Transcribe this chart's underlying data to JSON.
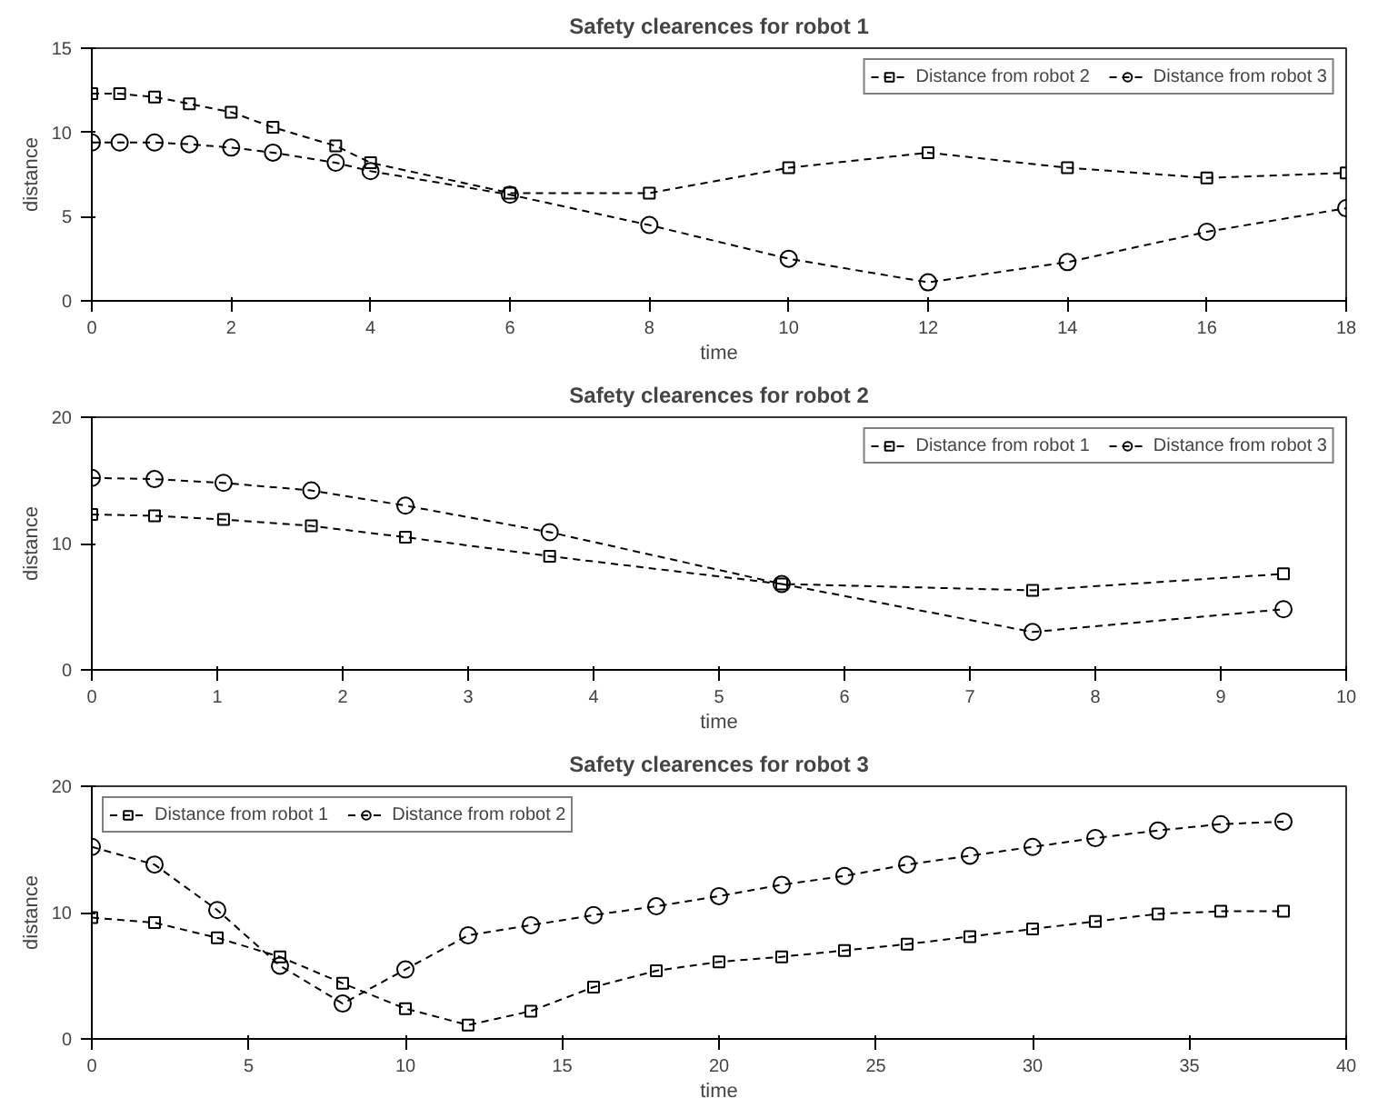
{
  "chart_data": [
    {
      "type": "line",
      "title": "Safety clearences for robot 1",
      "xlabel": "time",
      "ylabel": "distance",
      "xlim": [
        0,
        18
      ],
      "ylim": [
        0,
        15
      ],
      "xticks": [
        0,
        2,
        4,
        6,
        8,
        10,
        12,
        14,
        16,
        18
      ],
      "yticks": [
        0,
        5,
        10,
        15
      ],
      "grid": false,
      "legend": "top right",
      "line_style": "dashed",
      "series": [
        {
          "name": "Distance from robot 2",
          "color": "#000000",
          "marker": "square",
          "x": [
            0,
            0.4,
            0.9,
            1.4,
            2,
            2.6,
            3.5,
            4,
            6,
            8,
            10,
            12,
            14,
            16,
            18
          ],
          "values": [
            12.3,
            12.3,
            12.1,
            11.7,
            11.2,
            10.3,
            9.2,
            8.2,
            6.4,
            6.4,
            7.9,
            8.8,
            7.9,
            7.3,
            7.6
          ]
        },
        {
          "name": "Distance from robot 3",
          "color": "#000000",
          "marker": "circle",
          "x": [
            0,
            0.4,
            0.9,
            1.4,
            2,
            2.6,
            3.5,
            4,
            6,
            8,
            10,
            12,
            14,
            16,
            18
          ],
          "values": [
            9.4,
            9.4,
            9.4,
            9.3,
            9.1,
            8.8,
            8.2,
            7.7,
            6.3,
            4.5,
            2.5,
            1.1,
            2.3,
            4.1,
            5.5
          ]
        }
      ]
    },
    {
      "type": "line",
      "title": "Safety clearences for robot 2",
      "xlabel": "time",
      "ylabel": "distance",
      "xlim": [
        0,
        10
      ],
      "ylim": [
        0,
        20
      ],
      "xticks": [
        0,
        1,
        2,
        3,
        4,
        5,
        6,
        7,
        8,
        9,
        10
      ],
      "yticks": [
        0,
        10,
        20
      ],
      "grid": false,
      "legend": "top right",
      "line_style": "dashed",
      "series": [
        {
          "name": "Distance from robot 1",
          "color": "#000000",
          "marker": "square",
          "x": [
            0,
            0.5,
            1.05,
            1.75,
            2.5,
            3.65,
            5.5,
            7.5,
            9.5
          ],
          "values": [
            12.3,
            12.2,
            11.9,
            11.4,
            10.5,
            9.0,
            6.8,
            6.3,
            7.6
          ]
        },
        {
          "name": "Distance from robot 3",
          "color": "#000000",
          "marker": "circle",
          "x": [
            0,
            0.5,
            1.05,
            1.75,
            2.5,
            3.65,
            5.5,
            7.5,
            9.5
          ],
          "values": [
            15.2,
            15.1,
            14.8,
            14.2,
            13.0,
            10.9,
            6.8,
            3.0,
            4.8
          ]
        }
      ]
    },
    {
      "type": "line",
      "title": "Safety clearences for robot 3",
      "xlabel": "time",
      "ylabel": "distance",
      "xlim": [
        0,
        40
      ],
      "ylim": [
        0,
        20
      ],
      "xticks": [
        0,
        5,
        10,
        15,
        20,
        25,
        30,
        35,
        40
      ],
      "yticks": [
        0,
        10,
        20
      ],
      "grid": false,
      "legend": "top left",
      "line_style": "dashed",
      "series": [
        {
          "name": "Distance from robot 1",
          "color": "#000000",
          "marker": "square",
          "x": [
            0,
            2,
            4,
            6,
            8,
            10,
            12,
            14,
            16,
            18,
            20,
            22,
            24,
            26,
            28,
            30,
            32,
            34,
            36,
            38
          ],
          "values": [
            9.6,
            9.2,
            8.0,
            6.5,
            4.4,
            2.4,
            1.1,
            2.2,
            4.1,
            5.4,
            6.1,
            6.5,
            7.0,
            7.5,
            8.1,
            8.7,
            9.3,
            9.9,
            10.1,
            10.1
          ]
        },
        {
          "name": "Distance from robot 2",
          "color": "#000000",
          "marker": "circle",
          "x": [
            0,
            2,
            4,
            6,
            8,
            10,
            12,
            14,
            16,
            18,
            20,
            22,
            24,
            26,
            28,
            30,
            32,
            34,
            36,
            38
          ],
          "values": [
            15.2,
            13.8,
            10.2,
            5.8,
            2.8,
            5.5,
            8.2,
            9.0,
            9.8,
            10.5,
            11.3,
            12.2,
            12.9,
            13.8,
            14.5,
            15.2,
            15.9,
            16.5,
            17.0,
            17.2
          ]
        }
      ]
    }
  ]
}
